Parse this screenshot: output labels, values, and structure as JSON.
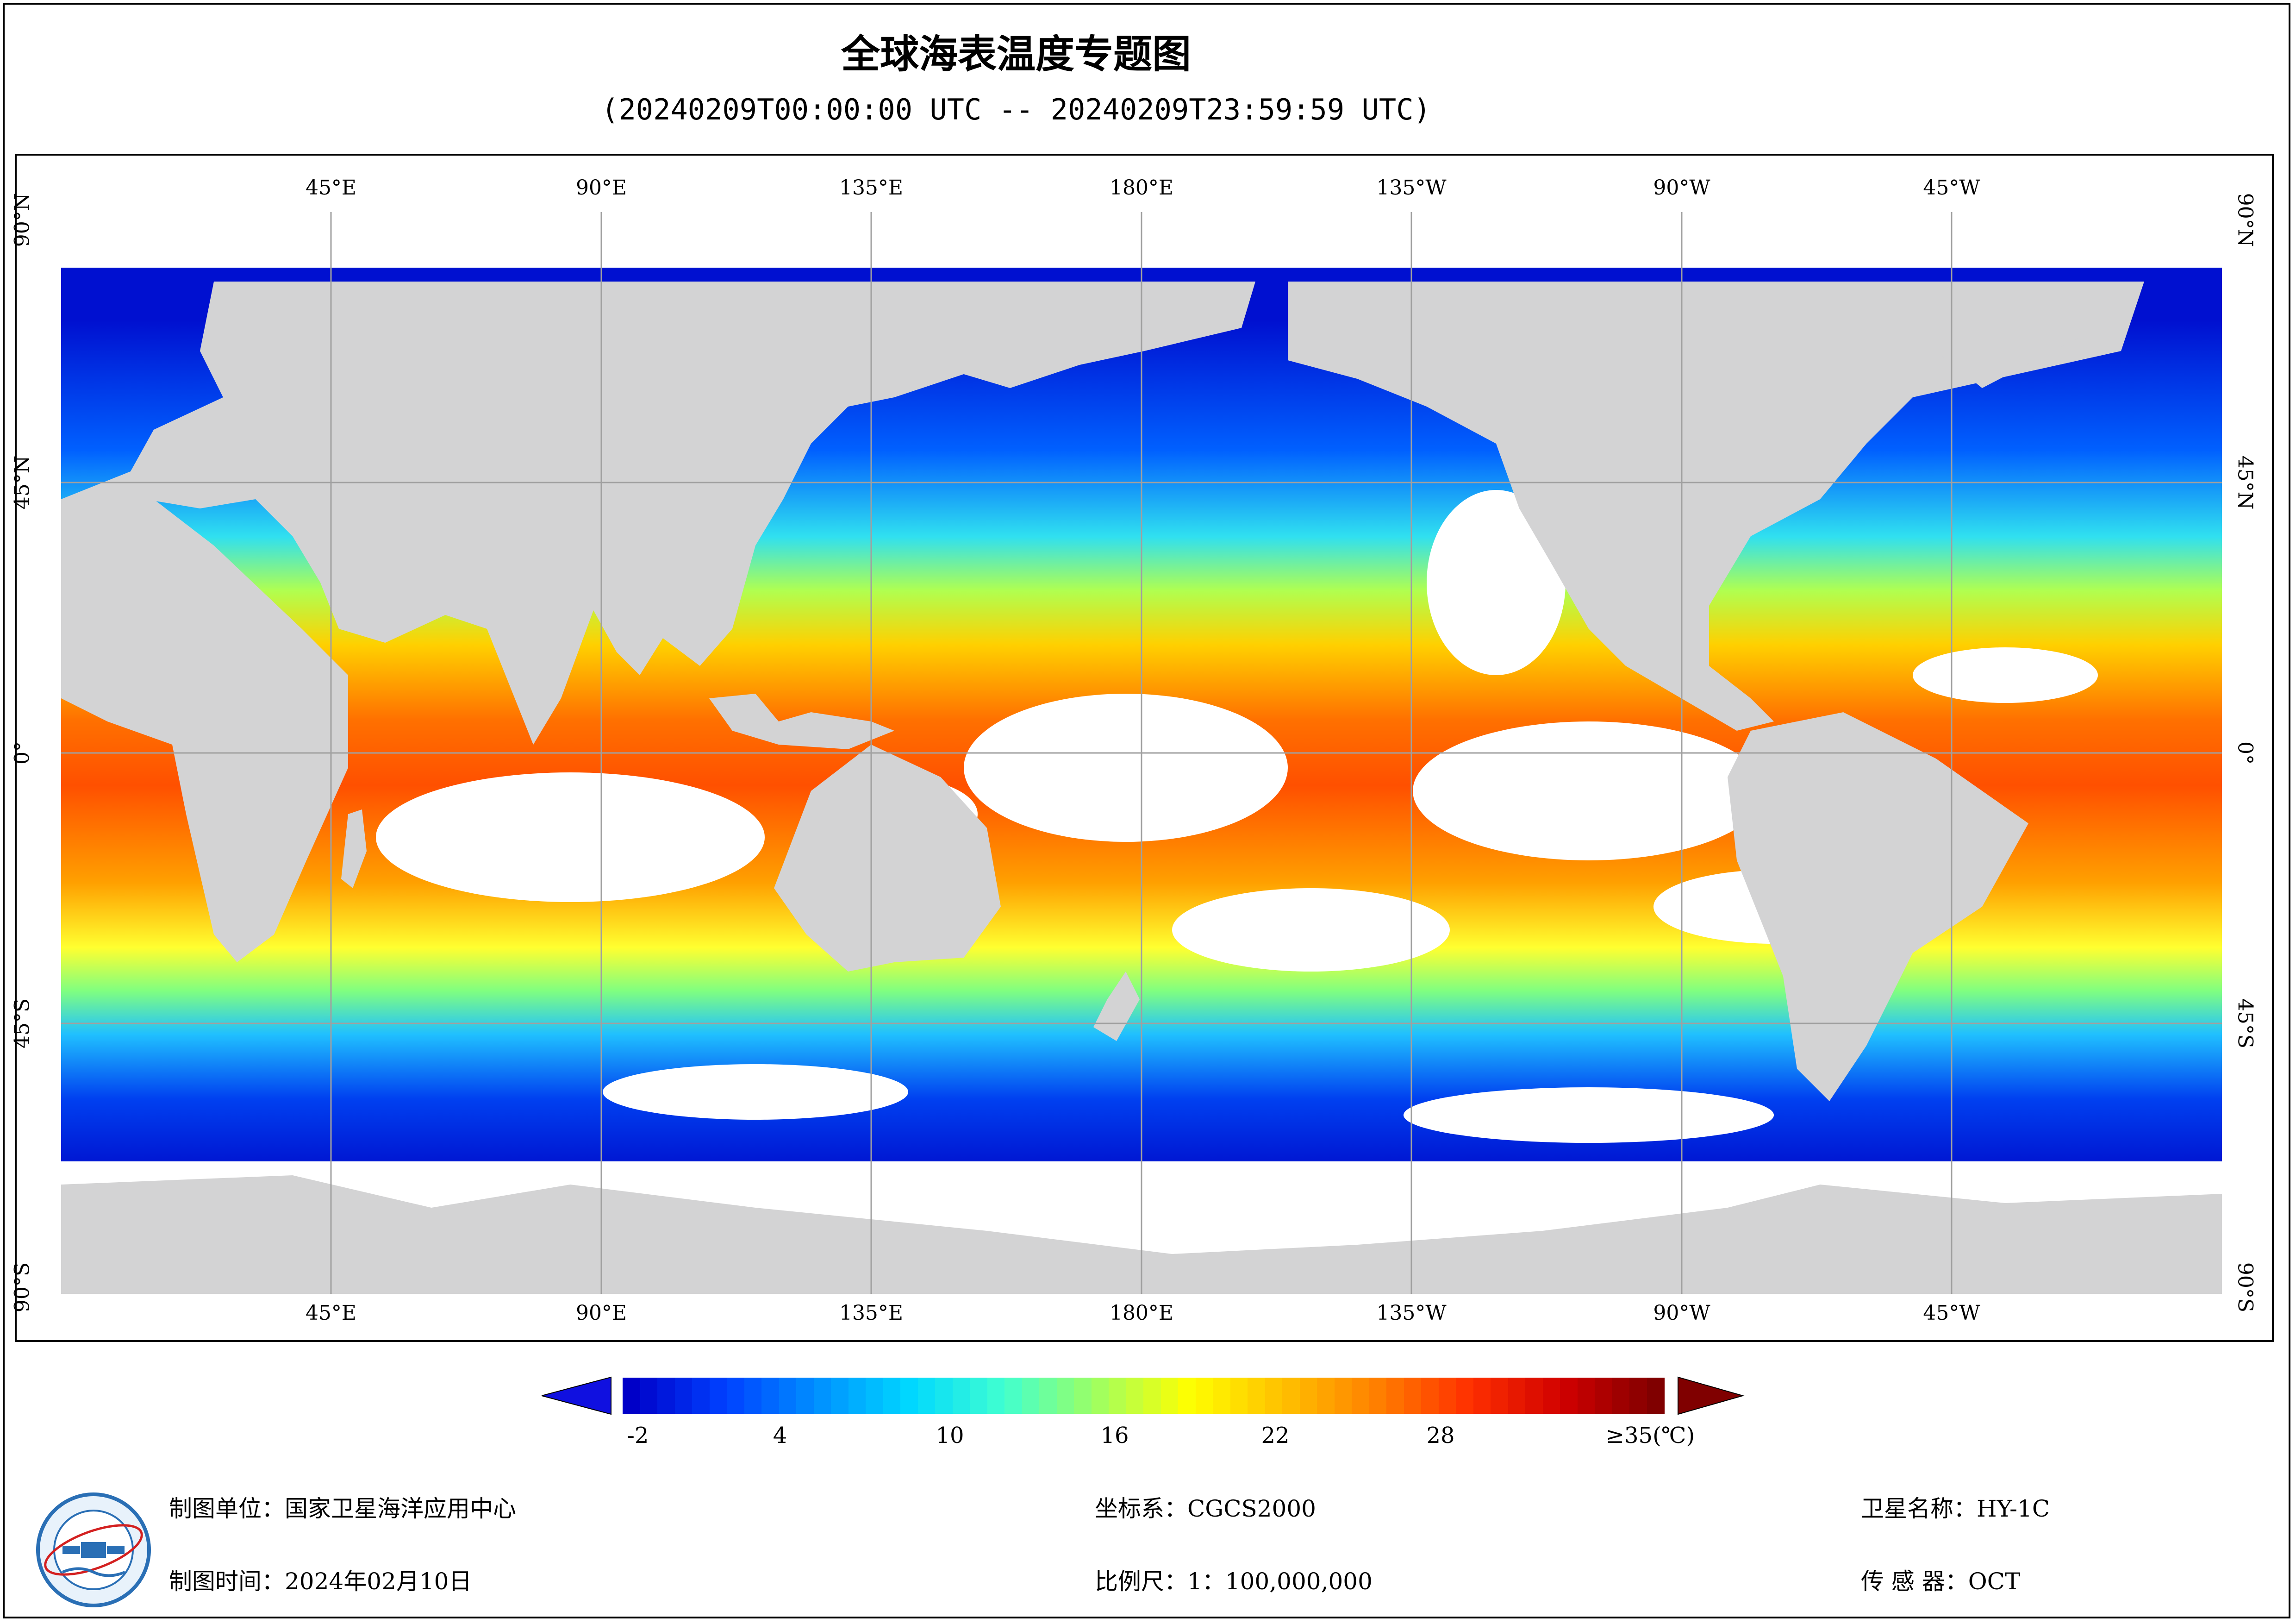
{
  "title": "全球海表温度专题图",
  "subtitle": "(20240209T00:00:00 UTC -- 20240209T23:59:59 UTC)",
  "map": {
    "projection": "equirectangular, centered 180°",
    "lon_labels_top": [
      "45°E",
      "90°E",
      "135°E",
      "180°E",
      "135°W",
      "90°W",
      "45°W"
    ],
    "lon_labels_bottom": [
      "45°E",
      "90°E",
      "135°E",
      "180°E",
      "135°W",
      "90°W",
      "45°W"
    ],
    "lat_labels_left": [
      "90°N",
      "45°N",
      "0°",
      "45°S",
      "90°S"
    ],
    "lat_labels_right": [
      "90°N",
      "45°N",
      "0°",
      "45°S",
      "90°S"
    ],
    "grid": true,
    "colors": {
      "land": "#d3d3d4",
      "no_data": "#ffffff",
      "grid": "#a0a0a0"
    }
  },
  "colorbar": {
    "tick_labels": [
      "-2",
      "4",
      "10",
      "16",
      "22",
      "28",
      "≥35(℃)"
    ],
    "unit": "℃",
    "range": [
      -2,
      35
    ],
    "colors": [
      "#0000c8",
      "#0040ff",
      "#0090ff",
      "#00d8ff",
      "#40ffd0",
      "#a0ff60",
      "#ffff00",
      "#ffc000",
      "#ff8000",
      "#ff3000",
      "#d00000",
      "#800000"
    ]
  },
  "footer": {
    "organization": "制图单位：国家卫星海洋应用中心",
    "date": "制图时间：2024年02月10日",
    "crs": "坐标系：CGCS2000",
    "scale": "比例尺：1：100,000,000",
    "satellite": "卫星名称：HY-1C",
    "sensor": "传 感 器：OCT"
  },
  "logo": {
    "icon": "nsoas-logo-icon"
  }
}
